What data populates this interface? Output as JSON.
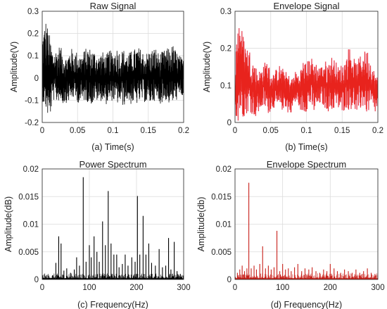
{
  "chart_data": [
    {
      "type": "line",
      "title": "Raw Signal",
      "xlabel": "(a) Time(s)",
      "ylabel": "Amplitude(V)",
      "xlim": [
        0,
        0.2
      ],
      "ylim": [
        -0.2,
        0.3
      ],
      "xticks": [
        "0",
        "0.05",
        "0.1",
        "0.15",
        "0.2"
      ],
      "yticks": [
        "-0.2",
        "-0.1",
        "0",
        "0.1",
        "0.2",
        "0.3"
      ],
      "grid": true,
      "color": "#000000",
      "series": [
        {
          "x": [
            0,
            0.005,
            0.01,
            0.015,
            0.02,
            0.025,
            0.03,
            0.035,
            0.04,
            0.045,
            0.05,
            0.055,
            0.06,
            0.065,
            0.07,
            0.075,
            0.08,
            0.085,
            0.09,
            0.095,
            0.1,
            0.105,
            0.11,
            0.115,
            0.12,
            0.125,
            0.13,
            0.135,
            0.14,
            0.145,
            0.15,
            0.155,
            0.16,
            0.165,
            0.17,
            0.175,
            0.18,
            0.185,
            0.19,
            0.195,
            0.2
          ],
          "y_max": [
            0.2,
            0.27,
            0.2,
            0.12,
            0.13,
            0.15,
            0.11,
            0.09,
            0.14,
            0.12,
            0.12,
            0.1,
            0.13,
            0.14,
            0.13,
            0.12,
            0.1,
            0.12,
            0.1,
            0.13,
            0.11,
            0.14,
            0.12,
            0.13,
            0.11,
            0.12,
            0.13,
            0.14,
            0.13,
            0.11,
            0.12,
            0.13,
            0.14,
            0.11,
            0.12,
            0.13,
            0.14,
            0.15,
            0.12,
            0.1,
            0.08
          ],
          "y_min": [
            -0.1,
            -0.14,
            -0.2,
            -0.1,
            -0.11,
            -0.1,
            -0.12,
            -0.11,
            -0.1,
            -0.09,
            -0.11,
            -0.12,
            -0.1,
            -0.11,
            -0.12,
            -0.1,
            -0.11,
            -0.1,
            -0.12,
            -0.11,
            -0.1,
            -0.12,
            -0.11,
            -0.13,
            -0.1,
            -0.12,
            -0.11,
            -0.12,
            -0.1,
            -0.11,
            -0.12,
            -0.11,
            -0.1,
            -0.12,
            -0.11,
            -0.1,
            -0.12,
            -0.11,
            -0.1,
            -0.09,
            -0.08
          ]
        }
      ]
    },
    {
      "type": "line",
      "title": "Envelope Signal",
      "xlabel": "(b) Time(s)",
      "ylabel": "Amplitude(V)",
      "xlim": [
        0,
        0.2
      ],
      "ylim": [
        0,
        0.3
      ],
      "xticks": [
        "0",
        "0.05",
        "0.1",
        "0.15",
        "0.2"
      ],
      "yticks": [
        "0",
        "0.1",
        "0.2",
        "0.3"
      ],
      "grid": true,
      "color": "#e8231d",
      "series": [
        {
          "x": [
            0,
            0.005,
            0.01,
            0.015,
            0.02,
            0.025,
            0.03,
            0.035,
            0.04,
            0.045,
            0.05,
            0.055,
            0.06,
            0.065,
            0.07,
            0.075,
            0.08,
            0.085,
            0.09,
            0.095,
            0.1,
            0.105,
            0.11,
            0.115,
            0.12,
            0.125,
            0.13,
            0.135,
            0.14,
            0.145,
            0.15,
            0.155,
            0.16,
            0.165,
            0.17,
            0.175,
            0.18,
            0.185,
            0.19,
            0.195,
            0.2
          ],
          "y_max": [
            0.16,
            0.3,
            0.25,
            0.21,
            0.2,
            0.17,
            0.15,
            0.14,
            0.16,
            0.17,
            0.14,
            0.13,
            0.16,
            0.15,
            0.14,
            0.13,
            0.12,
            0.14,
            0.13,
            0.17,
            0.16,
            0.18,
            0.17,
            0.16,
            0.15,
            0.17,
            0.16,
            0.18,
            0.17,
            0.15,
            0.16,
            0.17,
            0.21,
            0.18,
            0.16,
            0.18,
            0.19,
            0.2,
            0.17,
            0.14,
            0.12
          ],
          "y_min": [
            0.01,
            0.0,
            0.01,
            0.02,
            0.03,
            0.02,
            0.01,
            0.03,
            0.04,
            0.02,
            0.03,
            0.04,
            0.02,
            0.03,
            0.04,
            0.02,
            0.03,
            0.05,
            0.04,
            0.02,
            0.03,
            0.04,
            0.02,
            0.03,
            0.05,
            0.04,
            0.03,
            0.02,
            0.04,
            0.03,
            0.02,
            0.04,
            0.03,
            0.04,
            0.02,
            0.03,
            0.04,
            0.02,
            0.03,
            0.02,
            0.03
          ]
        }
      ]
    },
    {
      "type": "bar",
      "title": "Power Spectrum",
      "xlabel": "(c) Frequency(Hz)",
      "ylabel": "Amplitude(dB)",
      "xlim": [
        0,
        300
      ],
      "ylim": [
        0,
        0.02
      ],
      "xticks": [
        "0",
        "100",
        "200",
        "300"
      ],
      "yticks": [
        "0",
        "0.005",
        "0.01",
        "0.015",
        "0.02"
      ],
      "grid": true,
      "color": "#000000",
      "series": [
        {
          "x": [
            29,
            35,
            40,
            46,
            52,
            60,
            68,
            73,
            79,
            87,
            93,
            100,
            104,
            110,
            116,
            121,
            128,
            134,
            140,
            146,
            152,
            158,
            163,
            170,
            176,
            182,
            190,
            197,
            202,
            207,
            214,
            220,
            226,
            232,
            240,
            248,
            255,
            262,
            268,
            273,
            280,
            286,
            293
          ],
          "values": [
            0.003,
            0.0078,
            0.0065,
            0.0016,
            0.002,
            0.0012,
            0.0018,
            0.004,
            0.0025,
            0.0185,
            0.0032,
            0.0062,
            0.004,
            0.0078,
            0.005,
            0.0032,
            0.0105,
            0.0062,
            0.016,
            0.0065,
            0.0045,
            0.0045,
            0.0022,
            0.0028,
            0.0045,
            0.0025,
            0.004,
            0.0032,
            0.0151,
            0.0045,
            0.0115,
            0.0045,
            0.0065,
            0.003,
            0.0025,
            0.0055,
            0.0022,
            0.0025,
            0.0075,
            0.0018,
            0.0068,
            0.0015,
            0.001
          ]
        }
      ]
    },
    {
      "type": "bar",
      "title": "Envelope Spectrum",
      "xlabel": "(d) Frequency(Hz)",
      "ylabel": "Amplitude(db)",
      "xlim": [
        0,
        300
      ],
      "ylim": [
        0,
        0.02
      ],
      "xticks": [
        "0",
        "100",
        "200",
        "300"
      ],
      "yticks": [
        "0",
        "0.005",
        "0.01",
        "0.015",
        "0.02"
      ],
      "grid": true,
      "color": "#c8201a",
      "series": [
        {
          "x": [
            5,
            10,
            15,
            20,
            25,
            29,
            34,
            40,
            45,
            52,
            58,
            64,
            70,
            76,
            82,
            88,
            94,
            100,
            106,
            112,
            118,
            125,
            132,
            140,
            147,
            155,
            162,
            170,
            178,
            186,
            193,
            200,
            208,
            215,
            222,
            230,
            238,
            246,
            254,
            262,
            270,
            278,
            286,
            294
          ],
          "values": [
            0.0012,
            0.0018,
            0.0025,
            0.0015,
            0.002,
            0.0175,
            0.002,
            0.0025,
            0.0018,
            0.0028,
            0.006,
            0.002,
            0.0025,
            0.0018,
            0.0022,
            0.0088,
            0.0015,
            0.0028,
            0.0018,
            0.002,
            0.0015,
            0.0022,
            0.0028,
            0.0015,
            0.002,
            0.0018,
            0.0022,
            0.0015,
            0.0012,
            0.0018,
            0.0015,
            0.0028,
            0.002,
            0.0015,
            0.0012,
            0.0018,
            0.0015,
            0.0012,
            0.0018,
            0.0012,
            0.0015,
            0.002,
            0.0012,
            0.001
          ]
        }
      ]
    }
  ]
}
